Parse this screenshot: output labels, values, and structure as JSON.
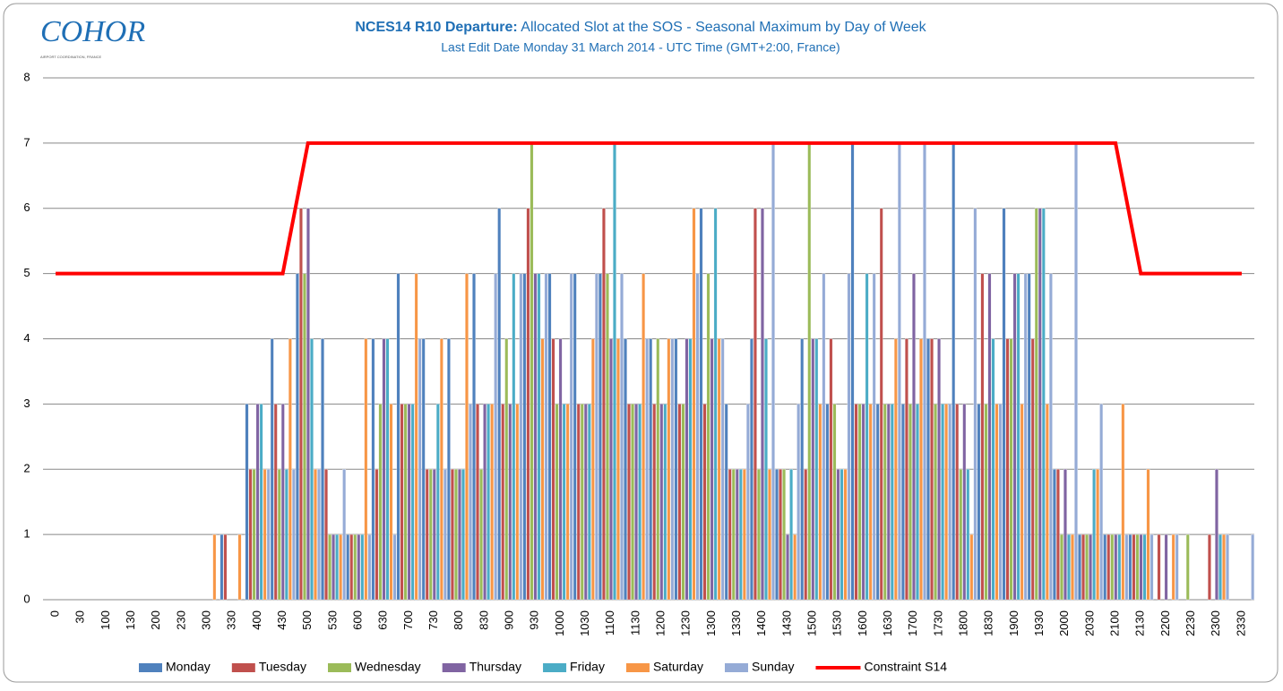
{
  "chart_data": {
    "type": "bar",
    "logo": "COHOR",
    "logo_caption": "AIRPORT COORDINATION, FRANCE",
    "title_bold": "NCES14 R10 Departure:",
    "title": "Allocated Slot at the SOS - Seasonal Maximum by Day of Week",
    "subtitle": "Last Edit Date Monday 31 March 2014 - UTC Time (GMT+2:00, France)",
    "categories": [
      "0",
      "30",
      "100",
      "130",
      "200",
      "230",
      "300",
      "330",
      "400",
      "430",
      "500",
      "530",
      "600",
      "630",
      "700",
      "730",
      "800",
      "830",
      "900",
      "930",
      "1000",
      "1030",
      "1100",
      "1130",
      "1200",
      "1230",
      "1300",
      "1330",
      "1400",
      "1430",
      "1500",
      "1530",
      "1600",
      "1630",
      "1700",
      "1730",
      "1800",
      "1830",
      "1900",
      "1930",
      "2000",
      "2030",
      "2100",
      "2130",
      "2200",
      "2230",
      "2300",
      "2330"
    ],
    "ylim": [
      0,
      8
    ],
    "yticks": [
      0,
      1,
      2,
      3,
      4,
      5,
      6,
      7,
      8
    ],
    "grid": true,
    "legend": "bottom",
    "series": [
      {
        "name": "Monday",
        "color": "#4f81bd",
        "values": [
          0,
          0,
          0,
          0,
          0,
          0,
          0,
          1,
          3,
          4,
          5,
          4,
          1,
          4,
          5,
          4,
          4,
          5,
          6,
          5,
          5,
          5,
          5,
          4,
          4,
          4,
          6,
          3,
          4,
          2,
          4,
          3,
          7,
          3,
          3,
          4,
          7,
          3,
          6,
          5,
          2,
          1,
          1,
          1,
          0,
          0,
          0,
          0
        ]
      },
      {
        "name": "Tuesday",
        "color": "#c0504d",
        "values": [
          0,
          0,
          0,
          0,
          0,
          0,
          0,
          1,
          2,
          3,
          6,
          2,
          1,
          2,
          3,
          2,
          2,
          3,
          3,
          6,
          4,
          3,
          6,
          3,
          3,
          3,
          3,
          2,
          6,
          2,
          2,
          4,
          3,
          6,
          4,
          4,
          3,
          5,
          4,
          4,
          2,
          1,
          1,
          1,
          1,
          0,
          1,
          0
        ]
      },
      {
        "name": "Wednesday",
        "color": "#9bbb59",
        "values": [
          0,
          0,
          0,
          0,
          0,
          0,
          0,
          0,
          2,
          2,
          5,
          1,
          1,
          3,
          3,
          2,
          2,
          2,
          4,
          7,
          3,
          3,
          5,
          3,
          4,
          3,
          5,
          2,
          2,
          2,
          7,
          3,
          3,
          3,
          3,
          3,
          2,
          3,
          4,
          6,
          1,
          1,
          1,
          1,
          0,
          1,
          0,
          0
        ]
      },
      {
        "name": "Thursday",
        "color": "#8064a2",
        "values": [
          0,
          0,
          0,
          0,
          0,
          0,
          0,
          0,
          3,
          3,
          6,
          1,
          1,
          4,
          3,
          2,
          2,
          3,
          3,
          5,
          4,
          3,
          4,
          3,
          3,
          4,
          4,
          2,
          6,
          1,
          4,
          2,
          3,
          3,
          5,
          4,
          3,
          5,
          5,
          6,
          2,
          1,
          1,
          1,
          1,
          0,
          2,
          0
        ]
      },
      {
        "name": "Friday",
        "color": "#4bacc6",
        "values": [
          0,
          0,
          0,
          0,
          0,
          0,
          0,
          0,
          3,
          2,
          4,
          1,
          1,
          4,
          3,
          3,
          2,
          3,
          5,
          5,
          3,
          3,
          7,
          3,
          3,
          4,
          6,
          2,
          4,
          2,
          4,
          2,
          5,
          3,
          3,
          3,
          2,
          4,
          5,
          6,
          1,
          2,
          1,
          1,
          0,
          0,
          1,
          0
        ]
      },
      {
        "name": "Saturday",
        "color": "#f79646",
        "values": [
          0,
          0,
          0,
          0,
          0,
          0,
          1,
          1,
          2,
          4,
          2,
          1,
          4,
          3,
          5,
          4,
          5,
          3,
          3,
          4,
          3,
          4,
          4,
          5,
          4,
          6,
          4,
          2,
          2,
          1,
          3,
          2,
          3,
          4,
          4,
          3,
          1,
          3,
          3,
          3,
          1,
          2,
          3,
          2,
          1,
          0,
          1,
          0
        ]
      },
      {
        "name": "Sunday",
        "color": "#95abd6",
        "values": [
          0,
          0,
          0,
          0,
          0,
          0,
          0,
          0,
          2,
          2,
          2,
          2,
          1,
          1,
          4,
          2,
          3,
          5,
          5,
          5,
          5,
          5,
          5,
          4,
          4,
          5,
          4,
          3,
          7,
          3,
          5,
          5,
          5,
          7,
          7,
          3,
          6,
          3,
          5,
          5,
          7,
          3,
          1,
          1,
          1,
          0,
          1,
          1
        ]
      },
      {
        "name": "Constraint S14",
        "color": "#ff0000",
        "type": "line",
        "values": [
          5,
          5,
          5,
          5,
          5,
          5,
          5,
          5,
          5,
          5,
          7,
          7,
          7,
          7,
          7,
          7,
          7,
          7,
          7,
          7,
          7,
          7,
          7,
          7,
          7,
          7,
          7,
          7,
          7,
          7,
          7,
          7,
          7,
          7,
          7,
          7,
          7,
          7,
          7,
          7,
          7,
          7,
          7,
          5,
          5,
          5,
          5,
          5
        ]
      }
    ]
  }
}
